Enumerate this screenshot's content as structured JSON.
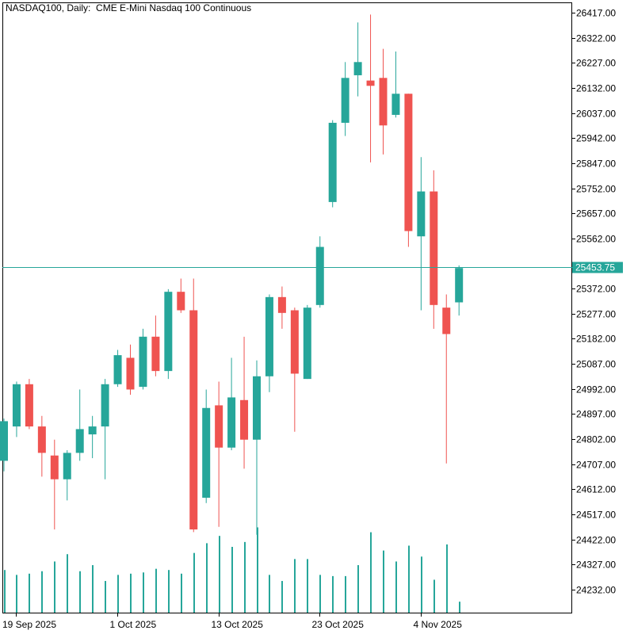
{
  "chart_data": {
    "type": "candlestick",
    "title": "NASDAQ100, Daily:  CME E-Mini Nasdaq 100 Continuous",
    "current_price": 25453.75,
    "current_price_label": "25453.75",
    "ylim": [
      24150,
      26430
    ],
    "y_ticks": [
      {
        "value": 26417,
        "label": "26417.00"
      },
      {
        "value": 26322,
        "label": "26322.00"
      },
      {
        "value": 26227,
        "label": "26227.00"
      },
      {
        "value": 26132,
        "label": "26132.00"
      },
      {
        "value": 26037,
        "label": "26037.00"
      },
      {
        "value": 25942,
        "label": "25942.00"
      },
      {
        "value": 25847,
        "label": "25847.00"
      },
      {
        "value": 25752,
        "label": "25752.00"
      },
      {
        "value": 25657,
        "label": "25657.00"
      },
      {
        "value": 25562,
        "label": "25562.00"
      },
      {
        "value": 25372,
        "label": "25372.00"
      },
      {
        "value": 25277,
        "label": "25277.00"
      },
      {
        "value": 25182,
        "label": "25182.00"
      },
      {
        "value": 25087,
        "label": "25087.00"
      },
      {
        "value": 24992,
        "label": "24992.00"
      },
      {
        "value": 24897,
        "label": "24897.00"
      },
      {
        "value": 24802,
        "label": "24802.00"
      },
      {
        "value": 24707,
        "label": "24707.00"
      },
      {
        "value": 24612,
        "label": "24612.00"
      },
      {
        "value": 24517,
        "label": "24517.00"
      },
      {
        "value": 24422,
        "label": "24422.00"
      },
      {
        "value": 24327,
        "label": "24327.00"
      },
      {
        "value": 24232,
        "label": "24232.00"
      }
    ],
    "x_ticks": [
      {
        "index": 1,
        "label": "19 Sep 2025"
      },
      {
        "index": 9,
        "label": "1 Oct 2025"
      },
      {
        "index": 17,
        "label": "13 Oct 2025"
      },
      {
        "index": 25,
        "label": "23 Oct 2025"
      },
      {
        "index": 33,
        "label": "4 Nov 2025"
      }
    ],
    "colors": {
      "bull": "#26a69a",
      "bear": "#ef5350",
      "volume": "#26a69a",
      "price_line": "#26a69a",
      "axis": "#000000"
    },
    "candles": [
      {
        "o": 24720,
        "h": 24880,
        "l": 24680,
        "c": 24870
      },
      {
        "o": 24850,
        "h": 25020,
        "l": 24810,
        "c": 25010
      },
      {
        "o": 25010,
        "h": 25030,
        "l": 24840,
        "c": 24850
      },
      {
        "o": 24850,
        "h": 24890,
        "l": 24660,
        "c": 24750
      },
      {
        "o": 24740,
        "h": 24800,
        "l": 24460,
        "c": 24650
      },
      {
        "o": 24650,
        "h": 24760,
        "l": 24570,
        "c": 24750
      },
      {
        "o": 24750,
        "h": 24990,
        "l": 24720,
        "c": 24840
      },
      {
        "o": 24820,
        "h": 24890,
        "l": 24730,
        "c": 24850
      },
      {
        "o": 24850,
        "h": 25030,
        "l": 24650,
        "c": 25010
      },
      {
        "o": 25010,
        "h": 25140,
        "l": 25000,
        "c": 25120
      },
      {
        "o": 25110,
        "h": 25160,
        "l": 24970,
        "c": 24990
      },
      {
        "o": 25000,
        "h": 25220,
        "l": 24990,
        "c": 25190
      },
      {
        "o": 25190,
        "h": 25270,
        "l": 25040,
        "c": 25060
      },
      {
        "o": 25060,
        "h": 25370,
        "l": 25030,
        "c": 25360
      },
      {
        "o": 25360,
        "h": 25410,
        "l": 25280,
        "c": 25290
      },
      {
        "o": 25290,
        "h": 25410,
        "l": 24450,
        "c": 24460
      },
      {
        "o": 24580,
        "h": 24990,
        "l": 24560,
        "c": 24920
      },
      {
        "o": 24930,
        "h": 25020,
        "l": 24470,
        "c": 24770
      },
      {
        "o": 24770,
        "h": 25110,
        "l": 24760,
        "c": 24960
      },
      {
        "o": 24950,
        "h": 25190,
        "l": 24690,
        "c": 24800
      },
      {
        "o": 24800,
        "h": 25100,
        "l": 24440,
        "c": 25040
      },
      {
        "o": 25040,
        "h": 25350,
        "l": 24980,
        "c": 25340
      },
      {
        "o": 25340,
        "h": 25380,
        "l": 25220,
        "c": 25280
      },
      {
        "o": 25290,
        "h": 25300,
        "l": 24830,
        "c": 25050
      },
      {
        "o": 25030,
        "h": 25310,
        "l": 25030,
        "c": 25300
      },
      {
        "o": 25310,
        "h": 25570,
        "l": 25300,
        "c": 25530
      },
      {
        "o": 25700,
        "h": 26010,
        "l": 25680,
        "c": 26000
      },
      {
        "o": 26000,
        "h": 26230,
        "l": 25950,
        "c": 26170
      },
      {
        "o": 26180,
        "h": 26380,
        "l": 26100,
        "c": 26230
      },
      {
        "o": 26160,
        "h": 26410,
        "l": 25850,
        "c": 26140
      },
      {
        "o": 26170,
        "h": 26280,
        "l": 25880,
        "c": 25990
      },
      {
        "o": 26030,
        "h": 26270,
        "l": 26020,
        "c": 26110
      },
      {
        "o": 26110,
        "h": 26110,
        "l": 25530,
        "c": 25590
      },
      {
        "o": 25570,
        "h": 25870,
        "l": 25290,
        "c": 25740
      },
      {
        "o": 25740,
        "h": 25820,
        "l": 25220,
        "c": 25310
      },
      {
        "o": 25300,
        "h": 25350,
        "l": 24710,
        "c": 25200
      },
      {
        "o": 25320,
        "h": 25460,
        "l": 25270,
        "c": 25450
      }
    ],
    "volume": [
      0.35,
      0.31,
      0.32,
      0.34,
      0.42,
      0.48,
      0.34,
      0.39,
      0.26,
      0.31,
      0.32,
      0.33,
      0.36,
      0.35,
      0.32,
      0.49,
      0.57,
      0.63,
      0.54,
      0.58,
      0.7,
      0.31,
      0.26,
      0.44,
      0.44,
      0.31,
      0.3,
      0.3,
      0.39,
      0.66,
      0.51,
      0.42,
      0.55,
      0.46,
      0.27,
      0.56,
      0.09
    ]
  }
}
